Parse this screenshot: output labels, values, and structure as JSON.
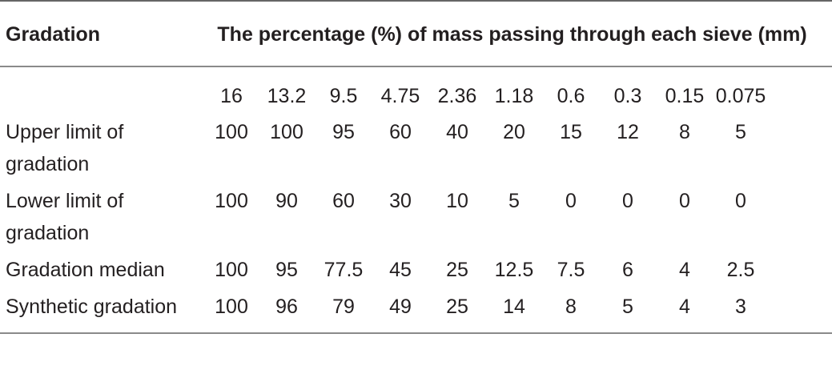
{
  "table": {
    "header": {
      "gradation": "Gradation",
      "sieve_heading": "The percentage (%) of mass passing through each sieve (mm)"
    },
    "sieve_sizes": [
      "16",
      "13.2",
      "9.5",
      "4.75",
      "2.36",
      "1.18",
      "0.6",
      "0.3",
      "0.15",
      "0.075"
    ],
    "rows": [
      {
        "label": "Upper limit of gradation",
        "values": [
          "100",
          "100",
          "95",
          "60",
          "40",
          "20",
          "15",
          "12",
          "8",
          "5"
        ]
      },
      {
        "label": "Lower limit of gradation",
        "values": [
          "100",
          "90",
          "60",
          "30",
          "10",
          "5",
          "0",
          "0",
          "0",
          "0"
        ]
      },
      {
        "label": "Gradation median",
        "values": [
          "100",
          "95",
          "77.5",
          "45",
          "25",
          "12.5",
          "7.5",
          "6",
          "4",
          "2.5"
        ]
      },
      {
        "label": "Synthetic gradation",
        "values": [
          "100",
          "96",
          "79",
          "49",
          "25",
          "14",
          "8",
          "5",
          "4",
          "3"
        ]
      }
    ]
  }
}
